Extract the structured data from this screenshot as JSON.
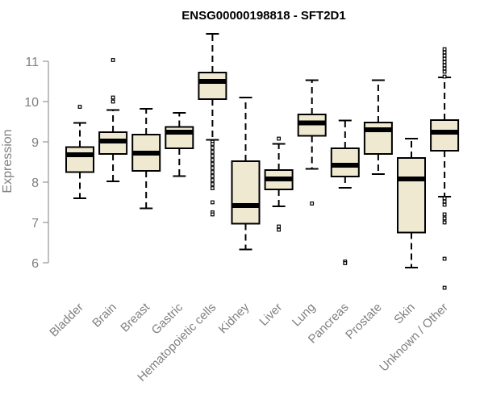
{
  "chart_data": {
    "type": "boxplot",
    "title": "ENSG00000198818 - SFT2D1",
    "ylabel": "Expression",
    "xlabel": "",
    "ylim": [
      5.4,
      11.8
    ],
    "yticks": [
      6,
      7,
      8,
      9,
      10,
      11
    ],
    "grid": false,
    "legend": "none",
    "box_fill": "#efe9d2",
    "categories": [
      "Bladder",
      "Brain",
      "Breast",
      "Gastric",
      "Hematopoietic cells",
      "Kidney",
      "Liver",
      "Lung",
      "Pancreas",
      "Prostate",
      "Skin",
      "Unknown / Other"
    ],
    "boxes": [
      {
        "whisker_low": 7.6,
        "q1": 8.25,
        "median": 8.68,
        "q3": 8.87,
        "whisker_high": 9.47,
        "outliers": [
          9.87
        ]
      },
      {
        "whisker_low": 8.02,
        "q1": 8.7,
        "median": 9.02,
        "q3": 9.24,
        "whisker_high": 9.79,
        "outliers": [
          10.0,
          10.1,
          11.03
        ]
      },
      {
        "whisker_low": 7.35,
        "q1": 8.28,
        "median": 8.72,
        "q3": 9.18,
        "whisker_high": 9.82,
        "outliers": []
      },
      {
        "whisker_low": 8.15,
        "q1": 8.84,
        "median": 9.24,
        "q3": 9.37,
        "whisker_high": 9.72,
        "outliers": []
      },
      {
        "whisker_low": 9.05,
        "q1": 10.06,
        "median": 10.5,
        "q3": 10.72,
        "whisker_high": 11.68,
        "outliers": [
          9.0,
          8.95,
          8.85,
          8.75,
          8.65,
          8.55,
          8.45,
          8.35,
          8.25,
          8.15,
          8.05,
          7.95,
          7.85,
          7.5,
          7.25,
          7.2
        ]
      },
      {
        "whisker_low": 6.33,
        "q1": 6.97,
        "median": 7.42,
        "q3": 8.52,
        "whisker_high": 10.1,
        "outliers": []
      },
      {
        "whisker_low": 7.4,
        "q1": 7.82,
        "median": 8.08,
        "q3": 8.3,
        "whisker_high": 8.95,
        "outliers": [
          9.08,
          6.9,
          6.82
        ]
      },
      {
        "whisker_low": 8.33,
        "q1": 9.15,
        "median": 9.47,
        "q3": 9.68,
        "whisker_high": 10.53,
        "outliers": [
          7.47
        ]
      },
      {
        "whisker_low": 7.86,
        "q1": 8.14,
        "median": 8.42,
        "q3": 8.84,
        "whisker_high": 9.53,
        "outliers": [
          6.03,
          5.99
        ]
      },
      {
        "whisker_low": 8.2,
        "q1": 8.7,
        "median": 9.3,
        "q3": 9.48,
        "whisker_high": 10.53,
        "outliers": []
      },
      {
        "whisker_low": 5.88,
        "q1": 6.75,
        "median": 8.08,
        "q3": 8.6,
        "whisker_high": 9.08,
        "outliers": []
      },
      {
        "whisker_low": 7.64,
        "q1": 8.78,
        "median": 9.24,
        "q3": 9.54,
        "whisker_high": 10.6,
        "outliers": [
          11.3,
          11.22,
          11.14,
          11.06,
          10.98,
          10.9,
          10.82,
          10.74,
          10.62,
          7.6,
          7.52,
          7.44,
          7.2,
          7.1,
          7.0,
          6.1,
          5.38
        ]
      }
    ]
  }
}
